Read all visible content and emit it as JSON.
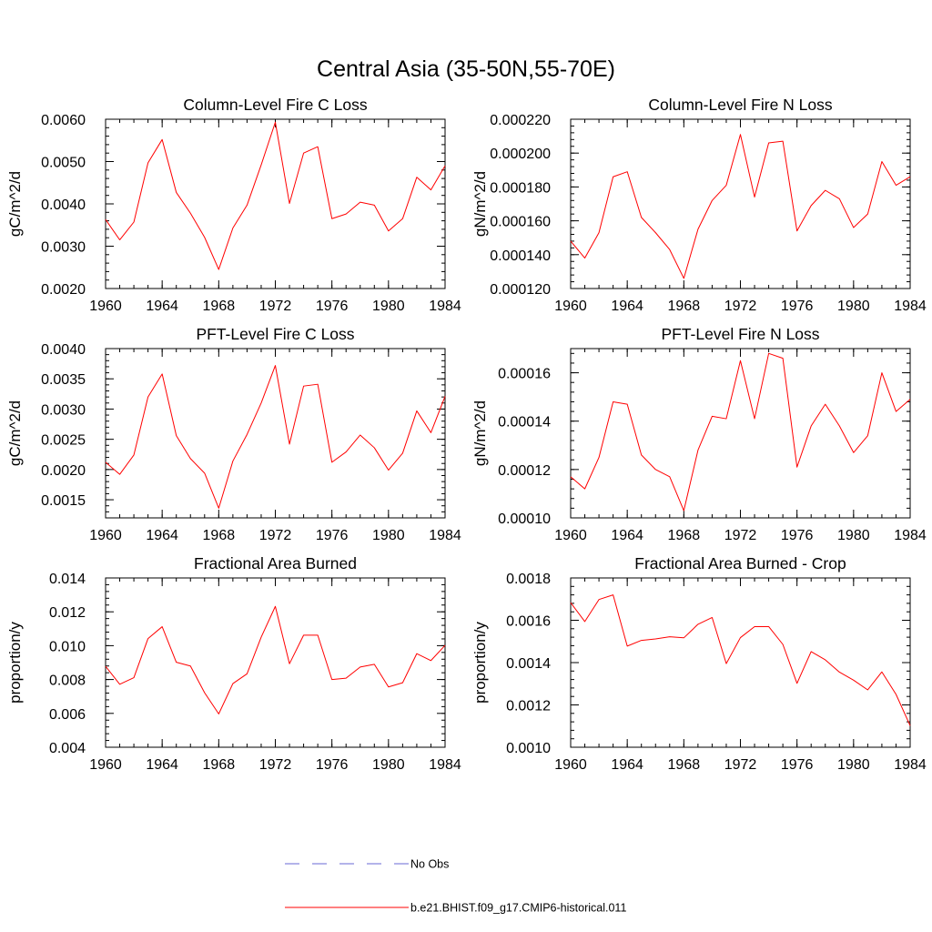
{
  "figure": {
    "title": "Central Asia (35-50N,55-70E)"
  },
  "legend": {
    "items": [
      {
        "label": "No Obs",
        "color": "#6a6ad6",
        "dash": true
      },
      {
        "label": "b.e21.BHIST.f09_g17.CMIP6-historical.011",
        "color": "#ff0000",
        "dash": false
      }
    ]
  },
  "chart_data": [
    {
      "type": "line",
      "title": "Column-Level Fire C Loss",
      "xlabel": "",
      "ylabel": "gC/m^2/d",
      "xlim": [
        1960,
        1984
      ],
      "ylim": [
        0.002,
        0.006
      ],
      "xticks": [
        1960,
        1964,
        1968,
        1972,
        1976,
        1980,
        1984
      ],
      "yticks": [
        0.002,
        0.003,
        0.004,
        0.005,
        0.006
      ],
      "ytick_labels": [
        "0.0020",
        "0.0030",
        "0.0040",
        "0.0050",
        "0.0060"
      ],
      "x": [
        1960,
        1961,
        1962,
        1963,
        1964,
        1965,
        1966,
        1967,
        1968,
        1969,
        1970,
        1971,
        1972,
        1973,
        1974,
        1975,
        1976,
        1977,
        1978,
        1979,
        1980,
        1981,
        1982,
        1983,
        1984
      ],
      "series": [
        {
          "color": "#ff0000",
          "values": [
            0.00363,
            0.00315,
            0.00357,
            0.00497,
            0.00552,
            0.00427,
            0.00378,
            0.00321,
            0.00245,
            0.00343,
            0.00397,
            0.00492,
            0.00593,
            0.00401,
            0.0052,
            0.00535,
            0.00365,
            0.00376,
            0.00404,
            0.00397,
            0.00336,
            0.00365,
            0.00463,
            0.00433,
            0.0049
          ]
        }
      ]
    },
    {
      "type": "line",
      "title": "Column-Level Fire N Loss",
      "xlabel": "",
      "ylabel": "gN/m^2/d",
      "xlim": [
        1960,
        1984
      ],
      "ylim": [
        0.00012,
        0.00022
      ],
      "xticks": [
        1960,
        1964,
        1968,
        1972,
        1976,
        1980,
        1984
      ],
      "yticks": [
        0.00012,
        0.00014,
        0.00016,
        0.00018,
        0.0002,
        0.00022
      ],
      "ytick_labels": [
        "0.000120",
        "0.000140",
        "0.000160",
        "0.000180",
        "0.000200",
        "0.000220"
      ],
      "x": [
        1960,
        1961,
        1962,
        1963,
        1964,
        1965,
        1966,
        1967,
        1968,
        1969,
        1970,
        1971,
        1972,
        1973,
        1974,
        1975,
        1976,
        1977,
        1978,
        1979,
        1980,
        1981,
        1982,
        1983,
        1984
      ],
      "series": [
        {
          "color": "#ff0000",
          "values": [
            0.000148,
            0.000138,
            0.000153,
            0.000186,
            0.000189,
            0.000162,
            0.000153,
            0.000143,
            0.000126,
            0.000155,
            0.000172,
            0.000181,
            0.000211,
            0.000174,
            0.000206,
            0.000207,
            0.000154,
            0.000169,
            0.000178,
            0.000173,
            0.000156,
            0.000164,
            0.000195,
            0.000181,
            0.000186
          ]
        }
      ]
    },
    {
      "type": "line",
      "title": "PFT-Level Fire C Loss",
      "xlabel": "",
      "ylabel": "gC/m^2/d",
      "xlim": [
        1960,
        1984
      ],
      "ylim": [
        0.0012,
        0.004
      ],
      "xticks": [
        1960,
        1964,
        1968,
        1972,
        1976,
        1980,
        1984
      ],
      "yticks": [
        0.0015,
        0.002,
        0.0025,
        0.003,
        0.0035,
        0.004
      ],
      "ytick_labels": [
        "0.0015",
        "0.0020",
        "0.0025",
        "0.0030",
        "0.0035",
        "0.0040"
      ],
      "x": [
        1960,
        1961,
        1962,
        1963,
        1964,
        1965,
        1966,
        1967,
        1968,
        1969,
        1970,
        1971,
        1972,
        1973,
        1974,
        1975,
        1976,
        1977,
        1978,
        1979,
        1980,
        1981,
        1982,
        1983,
        1984
      ],
      "series": [
        {
          "color": "#ff0000",
          "values": [
            0.00212,
            0.00192,
            0.00224,
            0.0032,
            0.00358,
            0.00256,
            0.00218,
            0.00194,
            0.00136,
            0.00214,
            0.00258,
            0.0031,
            0.00372,
            0.00242,
            0.00338,
            0.00341,
            0.00212,
            0.00229,
            0.00257,
            0.00236,
            0.00199,
            0.00227,
            0.00297,
            0.00261,
            0.00321
          ]
        }
      ]
    },
    {
      "type": "line",
      "title": "PFT-Level Fire N Loss",
      "xlabel": "",
      "ylabel": "gN/m^2/d",
      "xlim": [
        1960,
        1984
      ],
      "ylim": [
        0.0001,
        0.00017
      ],
      "xticks": [
        1960,
        1964,
        1968,
        1972,
        1976,
        1980,
        1984
      ],
      "yticks": [
        0.0001,
        0.00012,
        0.00014,
        0.00016
      ],
      "ytick_labels": [
        "0.00010",
        "0.00012",
        "0.00014",
        "0.00016"
      ],
      "x": [
        1960,
        1961,
        1962,
        1963,
        1964,
        1965,
        1966,
        1967,
        1968,
        1969,
        1970,
        1971,
        1972,
        1973,
        1974,
        1975,
        1976,
        1977,
        1978,
        1979,
        1980,
        1981,
        1982,
        1983,
        1984
      ],
      "series": [
        {
          "color": "#ff0000",
          "values": [
            0.000117,
            0.000112,
            0.000125,
            0.000148,
            0.000147,
            0.000126,
            0.00012,
            0.000117,
            0.000103,
            0.000128,
            0.000142,
            0.000141,
            0.000165,
            0.000141,
            0.000168,
            0.000166,
            0.000121,
            0.000138,
            0.000147,
            0.000138,
            0.000127,
            0.000134,
            0.00016,
            0.000144,
            0.000149
          ]
        }
      ]
    },
    {
      "type": "line",
      "title": "Fractional Area Burned",
      "xlabel": "",
      "ylabel": "proportion/y",
      "xlim": [
        1960,
        1984
      ],
      "ylim": [
        0.004,
        0.014
      ],
      "xticks": [
        1960,
        1964,
        1968,
        1972,
        1976,
        1980,
        1984
      ],
      "yticks": [
        0.004,
        0.006,
        0.008,
        0.01,
        0.012,
        0.014
      ],
      "ytick_labels": [
        "0.004",
        "0.006",
        "0.008",
        "0.010",
        "0.012",
        "0.014"
      ],
      "x": [
        1960,
        1961,
        1962,
        1963,
        1964,
        1965,
        1966,
        1967,
        1968,
        1969,
        1970,
        1971,
        1972,
        1973,
        1974,
        1975,
        1976,
        1977,
        1978,
        1979,
        1980,
        1981,
        1982,
        1983,
        1984
      ],
      "series": [
        {
          "color": "#ff0000",
          "values": [
            0.00878,
            0.00772,
            0.00811,
            0.01042,
            0.01112,
            0.00902,
            0.0088,
            0.00722,
            0.00597,
            0.00776,
            0.00834,
            0.0105,
            0.01232,
            0.00893,
            0.01062,
            0.01062,
            0.008,
            0.00808,
            0.00874,
            0.0089,
            0.00756,
            0.00781,
            0.00953,
            0.00912,
            0.01002
          ]
        }
      ]
    },
    {
      "type": "line",
      "title": "Fractional Area Burned - Crop",
      "xlabel": "",
      "ylabel": "proportion/y",
      "xlim": [
        1960,
        1984
      ],
      "ylim": [
        0.001,
        0.0018
      ],
      "xticks": [
        1960,
        1964,
        1968,
        1972,
        1976,
        1980,
        1984
      ],
      "yticks": [
        0.001,
        0.0012,
        0.0014,
        0.0016,
        0.0018
      ],
      "ytick_labels": [
        "0.0010",
        "0.0012",
        "0.0014",
        "0.0016",
        "0.0018"
      ],
      "x": [
        1960,
        1961,
        1962,
        1963,
        1964,
        1965,
        1966,
        1967,
        1968,
        1969,
        1970,
        1971,
        1972,
        1973,
        1974,
        1975,
        1976,
        1977,
        1978,
        1979,
        1980,
        1981,
        1982,
        1983,
        1984
      ],
      "series": [
        {
          "color": "#ff0000",
          "values": [
            0.001683,
            0.001594,
            0.001698,
            0.00172,
            0.001478,
            0.001505,
            0.001512,
            0.001522,
            0.001517,
            0.001581,
            0.001613,
            0.001395,
            0.001518,
            0.00157,
            0.00157,
            0.001486,
            0.001302,
            0.001452,
            0.001413,
            0.001355,
            0.001317,
            0.001271,
            0.001356,
            0.00125,
            0.001102
          ]
        }
      ]
    }
  ]
}
